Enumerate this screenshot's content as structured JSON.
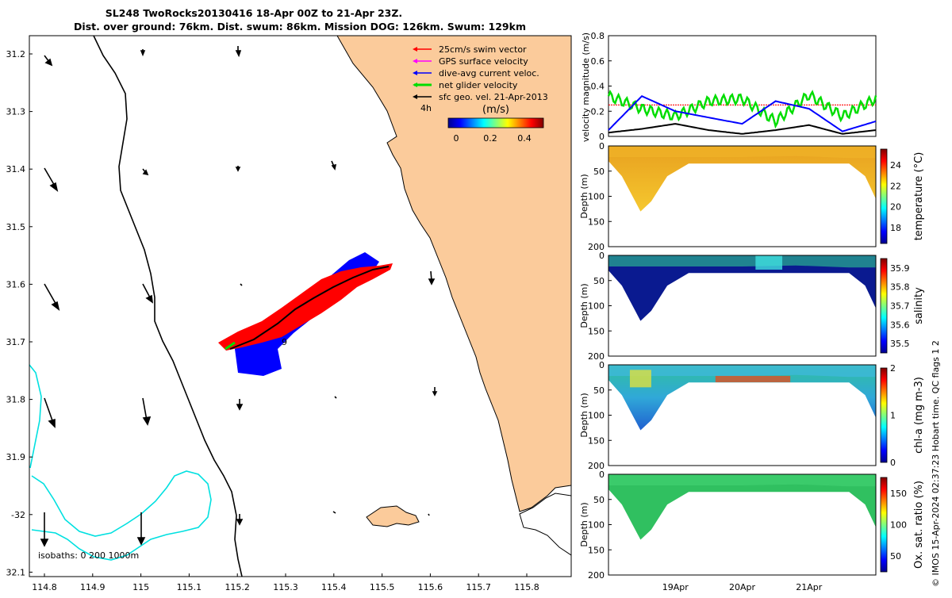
{
  "title": {
    "line1": "SL248 TwoRocks20130416 18-Apr 00Z to 21-Apr 23Z.",
    "line2": "Dist. over ground: 76km. Dist. swum: 86km. Mission DOG: 126km. Swum: 129km"
  },
  "map": {
    "lat_ticks": [
      "31.2",
      "31.3",
      "31.4",
      "31.5",
      "31.6",
      "31.7",
      "31.8",
      "31.9",
      "-32",
      "32.1"
    ],
    "lon_ticks": [
      "114.8",
      "114.9",
      "115",
      "115.1",
      "115.2",
      "115.3",
      "115.4",
      "115.5",
      "115.6",
      "115.7",
      "115.8"
    ],
    "legend": [
      {
        "label": "25cm/s swim vector",
        "color": "#ff0000"
      },
      {
        "label": "GPS surface velocity",
        "color": "#ff00ff"
      },
      {
        "label": "dive-avg current veloc.",
        "color": "#0000ff"
      },
      {
        "label": "net glider velocity",
        "color": "#00dd00"
      },
      {
        "label": "sfc geo. vel. 21-Apr-2013",
        "color": "#000000"
      }
    ],
    "time_label": "4h",
    "colorbar": {
      "title": "(m/s)",
      "ticks": [
        "0",
        "0.2",
        "0.4"
      ]
    },
    "isobaths_label": "isobaths: 0   200  1000m",
    "track_label": "9",
    "colors": {
      "land": "#fbcb9b",
      "isobath_0": "#00e0e0",
      "isobath_200": "#000000"
    }
  },
  "chart_data": [
    {
      "type": "line",
      "title": "",
      "ylabel": "velocity magnitude (m/s)",
      "ylim": [
        0,
        0.8
      ],
      "y_ticks": [
        "0",
        "0.2",
        "0.4",
        "0.6",
        "0.8"
      ],
      "x": [
        0,
        0.5,
        1,
        1.5,
        2,
        2.5,
        3,
        3.5,
        4
      ],
      "series": [
        {
          "name": "25cm/s swim vector",
          "color": "#ff0000",
          "values": [
            0.25,
            0.25,
            0.25,
            0.25,
            0.25,
            0.25,
            0.25,
            0.25,
            0.25
          ]
        },
        {
          "name": "net glider velocity",
          "color": "#00dd00",
          "values": [
            0.32,
            0.22,
            0.16,
            0.28,
            0.3,
            0.12,
            0.33,
            0.16,
            0.3
          ]
        },
        {
          "name": "dive-avg current veloc.",
          "color": "#0000ff",
          "values": [
            0.05,
            0.32,
            0.2,
            0.15,
            0.1,
            0.28,
            0.22,
            0.04,
            0.12
          ]
        },
        {
          "name": "sfc geo. vel.",
          "color": "#000000",
          "values": [
            0.03,
            0.06,
            0.1,
            0.05,
            0.02,
            0.05,
            0.09,
            0.02,
            0.05
          ]
        }
      ]
    },
    {
      "type": "heatmap",
      "variable": "temperature (°C)",
      "ylabel": "Depth (m)",
      "ylim": [
        200,
        0
      ],
      "y_ticks": [
        "0",
        "50",
        "100",
        "150",
        "200"
      ],
      "colorbar_ticks": [
        "18",
        "20",
        "22",
        "24"
      ],
      "colorbar_range": [
        16.5,
        25.5
      ],
      "surface_value": 23.4,
      "deep_value": 21.8
    },
    {
      "type": "heatmap",
      "variable": "salinity",
      "ylabel": "Depth (m)",
      "ylim": [
        200,
        0
      ],
      "y_ticks": [
        "0",
        "50",
        "100",
        "150",
        "200"
      ],
      "colorbar_ticks": [
        "35.5",
        "35.6",
        "35.7",
        "35.8",
        "35.9"
      ],
      "colorbar_range": [
        35.45,
        35.95
      ],
      "surface_value": 35.6,
      "deep_value": 35.48
    },
    {
      "type": "heatmap",
      "variable": "chl-a (mg m-3)",
      "ylabel": "Depth (m)",
      "ylim": [
        200,
        0
      ],
      "y_ticks": [
        "0",
        "50",
        "100",
        "150",
        "200"
      ],
      "colorbar_ticks": [
        "0",
        "1",
        "2"
      ],
      "colorbar_range": [
        0,
        2
      ],
      "surface_value": 1.1,
      "deep_value": 0.9
    },
    {
      "type": "heatmap",
      "variable": "Ox. sat. ratio (%)",
      "ylabel": "Depth (m)",
      "ylim": [
        200,
        0
      ],
      "y_ticks": [
        "0",
        "50",
        "100",
        "150",
        "200"
      ],
      "colorbar_ticks": [
        "50",
        "100",
        "150"
      ],
      "colorbar_range": [
        25,
        175
      ],
      "surface_value": 112,
      "deep_value": 105
    }
  ],
  "time_axis": {
    "ticks": [
      "19Apr",
      "20Apr",
      "21Apr"
    ]
  },
  "footer": "© IMOS 15-Apr-2024 02:37:23 Hobart time. QC flags 1  2"
}
